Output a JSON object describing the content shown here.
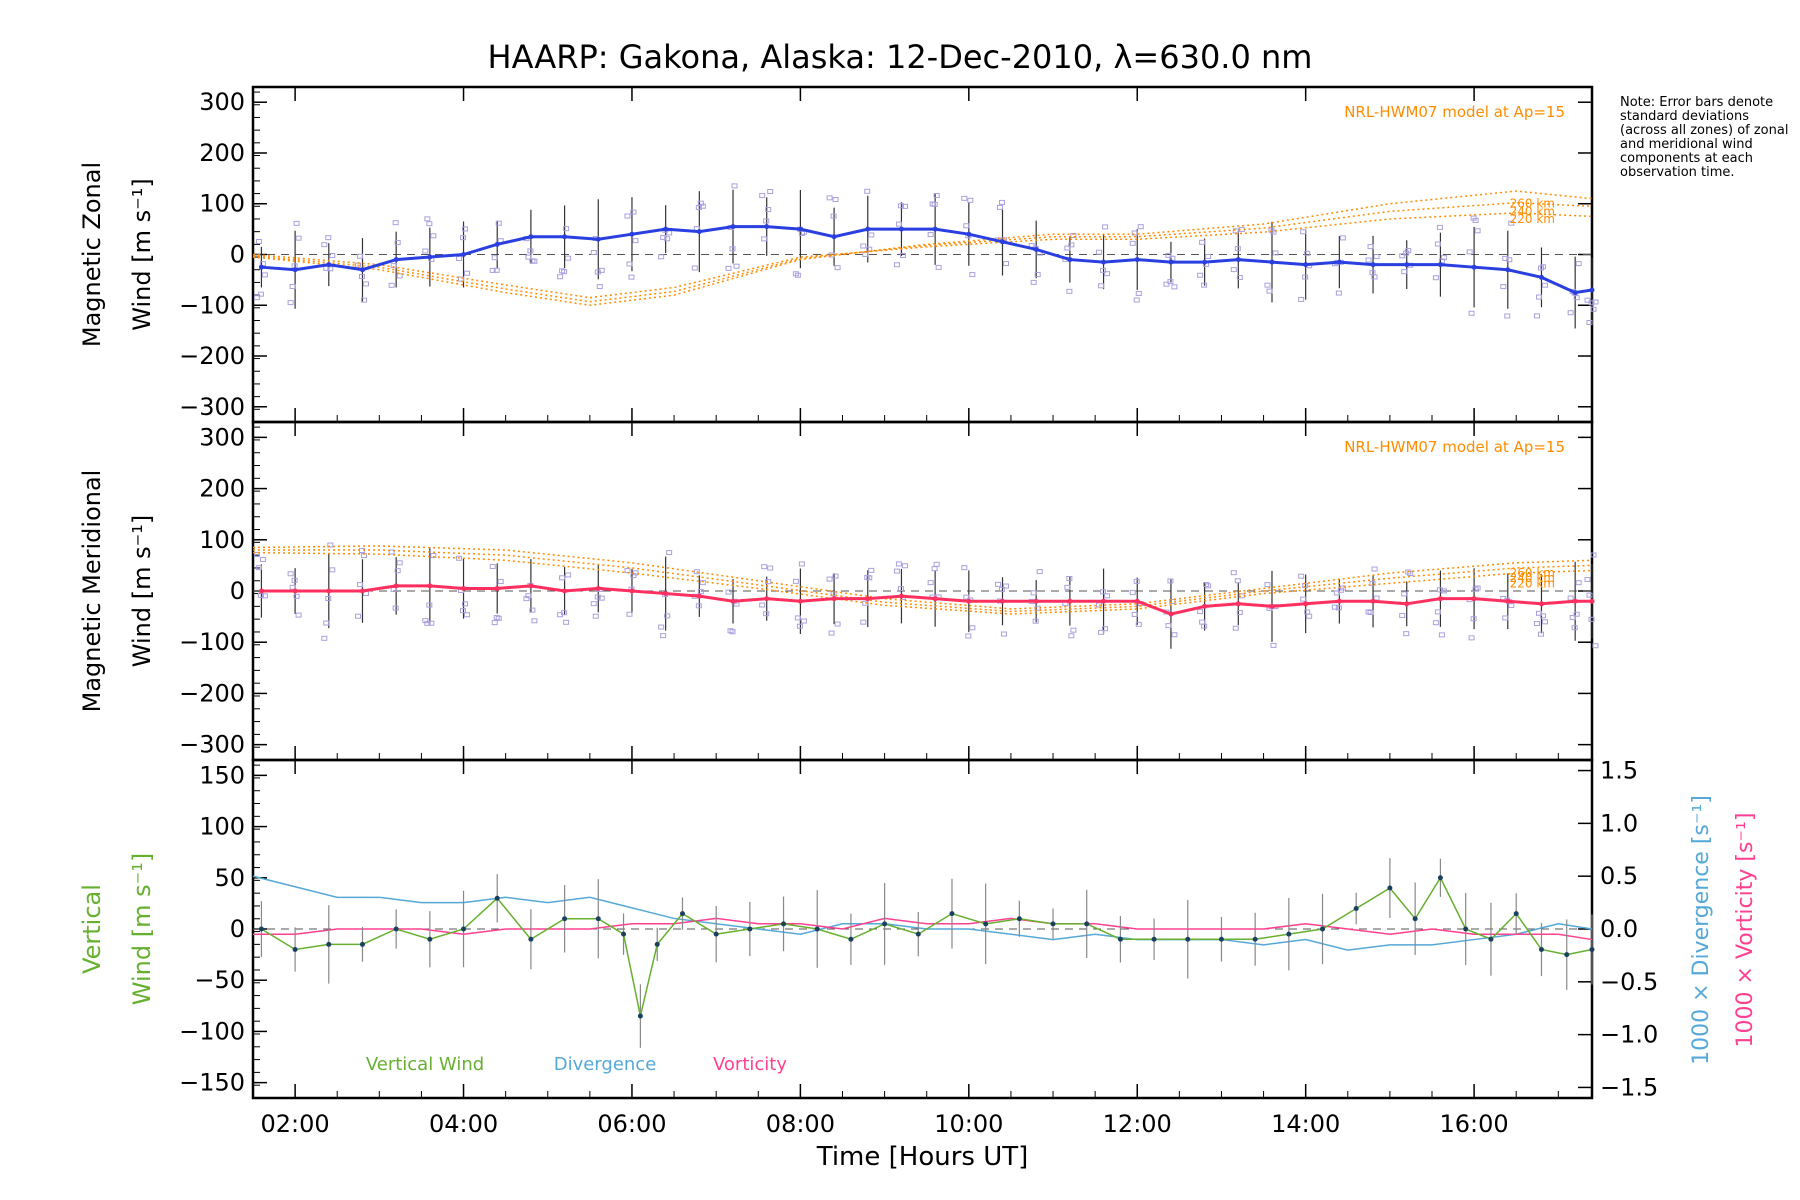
{
  "title": "HAARP: Gakona,  Alaska: 12-Dec-2010, λ=630.0 nm",
  "note": "Note: Error bars denote standard deviations (across all zones) of zonal and meridional wind components at each observation time.",
  "colors": {
    "zonal": "#2a3fe0",
    "meridional": "#ff3060",
    "model": "#ff8c00",
    "vertical": "#66b030",
    "divergence": "#55a8d8",
    "vorticity": "#ff4090",
    "scatter": "#a8a0e0"
  },
  "chart_data": [
    {
      "type": "line",
      "panel": "zonal",
      "ylabel": "Magnetic Zonal Wind [m s⁻¹]",
      "ylim": [
        -330,
        330
      ],
      "yticks": [
        -300,
        -200,
        -100,
        0,
        100,
        200,
        300
      ],
      "xlim": [
        1.5,
        17.4
      ],
      "xticks": [
        "02:00",
        "04:00",
        "06:00",
        "08:00",
        "10:00",
        "12:00",
        "14:00",
        "16:00"
      ],
      "model_label": "NRL-HWM07 model at Ap=15",
      "model_levels": [
        "260 km",
        "240 km",
        "220 km"
      ],
      "model_curves": [
        {
          "name": "260 km",
          "x": [
            1.5,
            3,
            4.5,
            5.5,
            6.5,
            8,
            9.5,
            11,
            12,
            13.5,
            15,
            16.5,
            17.4
          ],
          "y": [
            -5,
            -30,
            -75,
            -100,
            -80,
            -10,
            20,
            40,
            40,
            60,
            100,
            125,
            110
          ]
        },
        {
          "name": "240 km",
          "x": [
            1.5,
            3,
            4.5,
            5.5,
            6.5,
            8,
            9.5,
            11,
            12,
            13.5,
            15,
            16.5,
            17.4
          ],
          "y": [
            -3,
            -25,
            -68,
            -93,
            -73,
            -8,
            18,
            35,
            35,
            52,
            85,
            102,
            95
          ]
        },
        {
          "name": "220 km",
          "x": [
            1.5,
            3,
            4.5,
            5.5,
            6.5,
            8,
            9.5,
            11,
            12,
            13.5,
            15,
            16.5,
            17.4
          ],
          "y": [
            0,
            -20,
            -60,
            -85,
            -65,
            -5,
            15,
            30,
            30,
            44,
            70,
            82,
            75
          ]
        }
      ],
      "series": [
        {
          "name": "Magnetic Zonal Wind",
          "x": [
            1.6,
            2.0,
            2.4,
            2.8,
            3.2,
            3.6,
            4.0,
            4.4,
            4.8,
            5.2,
            5.6,
            6.0,
            6.4,
            6.8,
            7.2,
            7.6,
            8.0,
            8.4,
            8.8,
            9.2,
            9.6,
            10.0,
            10.4,
            10.8,
            11.2,
            11.6,
            12.0,
            12.4,
            12.8,
            13.2,
            13.6,
            14.0,
            14.4,
            14.8,
            15.2,
            15.6,
            16.0,
            16.4,
            16.8,
            17.2,
            17.4
          ],
          "y": [
            -25,
            -30,
            -20,
            -30,
            -10,
            -5,
            0,
            20,
            35,
            35,
            30,
            40,
            50,
            45,
            55,
            55,
            50,
            35,
            50,
            50,
            50,
            40,
            25,
            10,
            -10,
            -15,
            -10,
            -15,
            -15,
            -10,
            -15,
            -20,
            -15,
            -20,
            -20,
            -20,
            -25,
            -30,
            -45,
            -75,
            -70
          ]
        }
      ]
    },
    {
      "type": "line",
      "panel": "meridional",
      "ylabel": "Magnetic Meridional Wind [m s⁻¹]",
      "ylim": [
        -330,
        330
      ],
      "yticks": [
        -300,
        -200,
        -100,
        0,
        100,
        200,
        300
      ],
      "xlim": [
        1.5,
        17.4
      ],
      "xticks": [
        "02:00",
        "04:00",
        "06:00",
        "08:00",
        "10:00",
        "12:00",
        "14:00",
        "16:00"
      ],
      "model_label": "NRL-HWM07 model at Ap=15",
      "model_levels": [
        "260 km",
        "240 km",
        "220 km"
      ],
      "model_curves": [
        {
          "name": "260 km",
          "x": [
            1.5,
            3,
            4.5,
            6,
            7.5,
            9,
            10.5,
            12,
            13.5,
            15,
            16.5,
            17.4
          ],
          "y": [
            85,
            88,
            80,
            55,
            20,
            -15,
            -35,
            -25,
            5,
            35,
            55,
            60
          ]
        },
        {
          "name": "240 km",
          "x": [
            1.5,
            3,
            4.5,
            6,
            7.5,
            9,
            10.5,
            12,
            13.5,
            15,
            16.5,
            17.4
          ],
          "y": [
            80,
            80,
            70,
            45,
            12,
            -22,
            -40,
            -30,
            0,
            25,
            45,
            50
          ]
        },
        {
          "name": "220 km",
          "x": [
            1.5,
            3,
            4.5,
            6,
            7.5,
            9,
            10.5,
            12,
            13.5,
            15,
            16.5,
            17.4
          ],
          "y": [
            75,
            72,
            60,
            35,
            5,
            -28,
            -45,
            -35,
            -5,
            15,
            35,
            40
          ]
        }
      ],
      "series": [
        {
          "name": "Magnetic Meridional Wind",
          "x": [
            1.6,
            2.0,
            2.4,
            2.8,
            3.2,
            3.6,
            4.0,
            4.4,
            4.8,
            5.2,
            5.6,
            6.0,
            6.4,
            6.8,
            7.2,
            7.6,
            8.0,
            8.4,
            8.8,
            9.2,
            9.6,
            10.0,
            10.4,
            10.8,
            11.2,
            11.6,
            12.0,
            12.4,
            12.8,
            13.2,
            13.6,
            14.0,
            14.4,
            14.8,
            15.2,
            15.6,
            16.0,
            16.4,
            16.8,
            17.2,
            17.4
          ],
          "y": [
            0,
            0,
            0,
            0,
            10,
            10,
            5,
            5,
            10,
            0,
            5,
            0,
            -5,
            -10,
            -20,
            -15,
            -20,
            -15,
            -15,
            -10,
            -15,
            -20,
            -20,
            -20,
            -20,
            -20,
            -20,
            -45,
            -30,
            -25,
            -30,
            -25,
            -20,
            -20,
            -25,
            -15,
            -15,
            -20,
            -25,
            -20,
            -20
          ]
        }
      ]
    },
    {
      "type": "line",
      "panel": "vertical",
      "ylabel": "Vertical Wind [m s⁻¹]",
      "ylim": [
        -165,
        165
      ],
      "yticks": [
        -150,
        -100,
        -50,
        0,
        50,
        100,
        150
      ],
      "y2label_divergence": "1000 × Divergence [s⁻¹]",
      "y2label_vorticity": "1000 × Vorticity [s⁻¹]",
      "y2lim": [
        -1.6,
        1.6
      ],
      "y2ticks": [
        -1.5,
        -1.0,
        -0.5,
        0.0,
        0.5,
        1.0,
        1.5
      ],
      "y2ticklabels": [
        "−1.5",
        "−1.0",
        "−0.5",
        "0.0",
        "0.5",
        "1.0",
        "1.5"
      ],
      "xlim": [
        1.5,
        17.4
      ],
      "xticks": [
        "02:00",
        "04:00",
        "06:00",
        "08:00",
        "10:00",
        "12:00",
        "14:00",
        "16:00"
      ],
      "xlabel": "Time [Hours UT]",
      "legend": [
        "Vertical Wind",
        "Divergence",
        "Vorticity"
      ],
      "series": [
        {
          "name": "Vertical Wind",
          "axis": "left",
          "x": [
            1.6,
            2.0,
            2.4,
            2.8,
            3.2,
            3.6,
            4.0,
            4.4,
            4.8,
            5.2,
            5.6,
            5.9,
            6.1,
            6.3,
            6.6,
            7.0,
            7.4,
            7.8,
            8.2,
            8.6,
            9.0,
            9.4,
            9.8,
            10.2,
            10.6,
            11.0,
            11.4,
            11.8,
            12.2,
            12.6,
            13.0,
            13.4,
            13.8,
            14.2,
            14.6,
            15.0,
            15.3,
            15.6,
            15.9,
            16.2,
            16.5,
            16.8,
            17.1,
            17.4
          ],
          "y": [
            0,
            -20,
            -15,
            -15,
            0,
            -10,
            0,
            30,
            -10,
            10,
            10,
            -5,
            -85,
            -15,
            15,
            -5,
            0,
            5,
            0,
            -10,
            5,
            -5,
            15,
            5,
            10,
            5,
            5,
            -10,
            -10,
            -10,
            -10,
            -10,
            -5,
            0,
            20,
            40,
            10,
            50,
            0,
            -10,
            15,
            -20,
            -25,
            -20
          ]
        },
        {
          "name": "Divergence",
          "axis": "right",
          "x": [
            1.5,
            2.0,
            2.5,
            3.0,
            3.5,
            4.0,
            4.5,
            5.0,
            5.5,
            6.0,
            6.5,
            7.0,
            7.5,
            8.0,
            8.5,
            9.0,
            9.5,
            10.0,
            10.5,
            11.0,
            11.5,
            12.0,
            12.5,
            13.0,
            13.5,
            14.0,
            14.5,
            15.0,
            15.5,
            16.0,
            16.5,
            17.0,
            17.4
          ],
          "y": [
            0.5,
            0.4,
            0.3,
            0.3,
            0.25,
            0.25,
            0.3,
            0.25,
            0.3,
            0.2,
            0.1,
            0.05,
            0.0,
            -0.05,
            0.05,
            0.05,
            0.0,
            0.0,
            -0.05,
            -0.1,
            -0.05,
            -0.1,
            -0.1,
            -0.1,
            -0.15,
            -0.1,
            -0.2,
            -0.15,
            -0.15,
            -0.1,
            -0.05,
            0.05,
            0.0
          ]
        },
        {
          "name": "Vorticity",
          "axis": "right",
          "x": [
            1.5,
            2.0,
            2.5,
            3.0,
            3.5,
            4.0,
            4.5,
            5.0,
            5.5,
            6.0,
            6.5,
            7.0,
            7.5,
            8.0,
            8.5,
            9.0,
            9.5,
            10.0,
            10.5,
            11.0,
            11.5,
            12.0,
            12.5,
            13.0,
            13.5,
            14.0,
            14.5,
            15.0,
            15.5,
            16.0,
            16.5,
            17.0,
            17.4
          ],
          "y": [
            -0.05,
            -0.05,
            0.0,
            0.0,
            0.0,
            -0.05,
            0.0,
            0.0,
            0.0,
            0.05,
            0.05,
            0.1,
            0.05,
            0.05,
            0.0,
            0.1,
            0.05,
            0.05,
            0.1,
            0.05,
            0.05,
            0.0,
            0.0,
            0.0,
            0.0,
            0.05,
            0.0,
            -0.05,
            0.0,
            -0.05,
            -0.05,
            -0.05,
            -0.1
          ]
        }
      ]
    }
  ]
}
